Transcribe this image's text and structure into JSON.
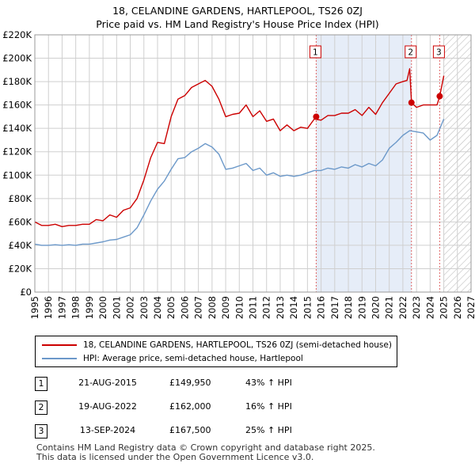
{
  "title_line1": "18, CELANDINE GARDENS, HARTLEPOOL, TS26 0ZJ",
  "title_line2": "Price paid vs. HM Land Registry's House Price Index (HPI)",
  "colors": {
    "property": "#cc0000",
    "hpi": "#6b98c9",
    "highlight": "#e6edf8",
    "marker_line": "#e06666",
    "grid": "#cfcfcf",
    "future_hatch": "#bdbdbd"
  },
  "legend": {
    "property_label": "18, CELANDINE GARDENS, HARTLEPOOL, TS26 0ZJ (semi-detached house)",
    "hpi_label": "HPI: Average price, semi-detached house, Hartlepool"
  },
  "sales": [
    {
      "id": "1",
      "date": "21-AUG-2015",
      "price": "£149,950",
      "hpi_change": "43% ↑ HPI"
    },
    {
      "id": "2",
      "date": "19-AUG-2022",
      "price": "£162,000",
      "hpi_change": "16% ↑ HPI"
    },
    {
      "id": "3",
      "date": "13-SEP-2024",
      "price": "£167,500",
      "hpi_change": "25% ↑ HPI"
    }
  ],
  "footer_line1": "Contains HM Land Registry data © Crown copyright and database right 2025.",
  "footer_line2": "This data is licensed under the Open Government Licence v3.0.",
  "chart_data": {
    "type": "line",
    "title": "Price paid vs. HM Land Registry's House Price Index (HPI)",
    "xlabel": "",
    "ylabel": "",
    "xlim": [
      1995,
      2027
    ],
    "ylim": [
      0,
      220000
    ],
    "x_ticks": [
      "1995",
      "1996",
      "1997",
      "1998",
      "1999",
      "2000",
      "2001",
      "2002",
      "2003",
      "2004",
      "2005",
      "2006",
      "2007",
      "2008",
      "2009",
      "2010",
      "2011",
      "2012",
      "2013",
      "2014",
      "2015",
      "2016",
      "2017",
      "2018",
      "2019",
      "2020",
      "2021",
      "2022",
      "2023",
      "2024",
      "2025",
      "2026",
      "2027"
    ],
    "y_ticks": [
      {
        "value": 0,
        "label": "£0"
      },
      {
        "value": 20000,
        "label": "£20K"
      },
      {
        "value": 40000,
        "label": "£40K"
      },
      {
        "value": 60000,
        "label": "£60K"
      },
      {
        "value": 80000,
        "label": "£80K"
      },
      {
        "value": 100000,
        "label": "£100K"
      },
      {
        "value": 120000,
        "label": "£120K"
      },
      {
        "value": 140000,
        "label": "£140K"
      },
      {
        "value": 160000,
        "label": "£160K"
      },
      {
        "value": 180000,
        "label": "£180K"
      },
      {
        "value": 200000,
        "label": "£200K"
      },
      {
        "value": 220000,
        "label": "£220K"
      }
    ],
    "grid": true,
    "highlight_range": [
      2015.64,
      2022.63
    ],
    "future_from": 2025.0,
    "sale_markers": [
      {
        "label": "1",
        "x": 2015.64,
        "y": 149950
      },
      {
        "label": "2",
        "x": 2022.63,
        "y": 162000
      },
      {
        "label": "3",
        "x": 2024.7,
        "y": 167500
      }
    ],
    "series": [
      {
        "name": "18, CELANDINE GARDENS, HARTLEPOOL, TS26 0ZJ (semi-detached house)",
        "x": [
          1995,
          1995.5,
          1996,
          1996.5,
          1997,
          1997.5,
          1998,
          1998.5,
          1999,
          1999.5,
          2000,
          2000.5,
          2001,
          2001.5,
          2002,
          2002.5,
          2003,
          2003.5,
          2004,
          2004.5,
          2005,
          2005.5,
          2006,
          2006.5,
          2007,
          2007.5,
          2008,
          2008.5,
          2009,
          2009.5,
          2010,
          2010.5,
          2011,
          2011.5,
          2012,
          2012.5,
          2013,
          2013.5,
          2014,
          2014.5,
          2015,
          2015.5,
          2016,
          2016.5,
          2017,
          2017.5,
          2018,
          2018.5,
          2019,
          2019.5,
          2020,
          2020.5,
          2021,
          2021.5,
          2022,
          2022.3,
          2022.5,
          2022.63,
          2023,
          2023.5,
          2024,
          2024.5,
          2024.7,
          2025.0
        ],
        "values": [
          60000,
          57000,
          57000,
          58000,
          56000,
          57000,
          57000,
          58000,
          58000,
          62000,
          61000,
          66000,
          64000,
          70000,
          72000,
          80000,
          96000,
          115000,
          128000,
          127000,
          150000,
          165000,
          168000,
          175000,
          178000,
          181000,
          176000,
          165000,
          150000,
          152000,
          153000,
          160000,
          150000,
          155000,
          146000,
          148000,
          138000,
          143000,
          138000,
          141000,
          140000,
          148000,
          147000,
          151000,
          151000,
          153000,
          153000,
          156000,
          151000,
          158000,
          152000,
          162000,
          170000,
          178000,
          180000,
          181000,
          191000,
          162000,
          158000,
          160000,
          160000,
          160000,
          167500,
          185000
        ]
      },
      {
        "name": "HPI: Average price, semi-detached house, Hartlepool",
        "x": [
          1995,
          1995.5,
          1996,
          1996.5,
          1997,
          1997.5,
          1998,
          1998.5,
          1999,
          1999.5,
          2000,
          2000.5,
          2001,
          2001.5,
          2002,
          2002.5,
          2003,
          2003.5,
          2004,
          2004.5,
          2005,
          2005.5,
          2006,
          2006.5,
          2007,
          2007.5,
          2008,
          2008.5,
          2009,
          2009.5,
          2010,
          2010.5,
          2011,
          2011.5,
          2012,
          2012.5,
          2013,
          2013.5,
          2014,
          2014.5,
          2015,
          2015.5,
          2016,
          2016.5,
          2017,
          2017.5,
          2018,
          2018.5,
          2019,
          2019.5,
          2020,
          2020.5,
          2021,
          2021.5,
          2022,
          2022.5,
          2023,
          2023.5,
          2024,
          2024.5,
          2025.0
        ],
        "values": [
          41000,
          40000,
          40000,
          40500,
          40000,
          40500,
          40000,
          41000,
          41000,
          42000,
          43000,
          44500,
          45000,
          47000,
          49000,
          55000,
          66000,
          78000,
          88000,
          95000,
          105000,
          114000,
          115000,
          120000,
          123000,
          127000,
          124000,
          118000,
          105000,
          106000,
          108000,
          110000,
          104000,
          106000,
          100000,
          102000,
          99000,
          100000,
          99000,
          100000,
          102000,
          104000,
          104000,
          106000,
          105000,
          107000,
          106000,
          109000,
          107000,
          110000,
          108000,
          113000,
          123000,
          128000,
          134000,
          138000,
          137000,
          136000,
          130000,
          134000,
          148000
        ]
      }
    ]
  }
}
